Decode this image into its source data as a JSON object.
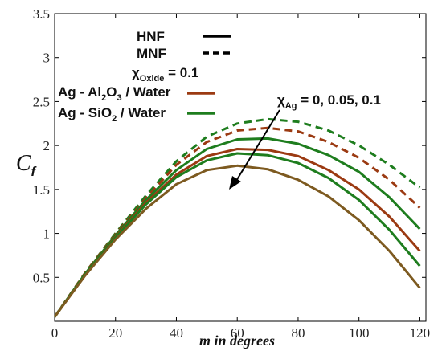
{
  "chart_data": {
    "type": "line",
    "xlabel": "m in degrees",
    "ylabel": "C",
    "ylabel_sub": "f",
    "xlim": [
      0,
      122
    ],
    "ylim": [
      0,
      3.5
    ],
    "xticks": [
      0,
      20,
      40,
      60,
      80,
      100,
      120
    ],
    "yticks": [
      0.5,
      1,
      1.5,
      2,
      2.5,
      3,
      3.5
    ],
    "grid": false,
    "colors": {
      "al2o3": "#9b3a12",
      "sio2": "#1e7d1e",
      "black": "#000000",
      "olive": "#7d5a20"
    },
    "legend_style": {
      "hnf": "HNF",
      "mnf": "MNF",
      "oxide_pre": "χ",
      "oxide_sub": "Oxide",
      "oxide_post": " = 0.1"
    },
    "legend_fluid": {
      "al2o3": {
        "t1": "Ag - Al",
        "s1": "2",
        "t2": "O",
        "s2": "3",
        "t3": " / Water"
      },
      "sio2": {
        "t1": "Ag - SiO",
        "s1": "2",
        "t2": " / Water"
      }
    },
    "annotation": {
      "pre": "χ",
      "sub": "Ag",
      "post": " = 0, 0.05, 0.1"
    },
    "series": [
      {
        "style": "dashed",
        "color": "sio2",
        "x": [
          0,
          10,
          20,
          30,
          40,
          50,
          60,
          70,
          80,
          90,
          100,
          110,
          120
        ],
        "y": [
          0.05,
          0.55,
          1.0,
          1.43,
          1.82,
          2.1,
          2.25,
          2.3,
          2.27,
          2.17,
          2.0,
          1.78,
          1.52
        ]
      },
      {
        "style": "dashed",
        "color": "al2o3",
        "x": [
          0,
          10,
          20,
          30,
          40,
          50,
          60,
          70,
          80,
          90,
          100,
          110,
          120
        ],
        "y": [
          0.05,
          0.55,
          0.99,
          1.4,
          1.78,
          2.04,
          2.17,
          2.2,
          2.16,
          2.04,
          1.86,
          1.61,
          1.29
        ]
      },
      {
        "style": "solid",
        "color": "sio2",
        "x": [
          0,
          10,
          20,
          30,
          40,
          50,
          60,
          70,
          80,
          90,
          100,
          110,
          120
        ],
        "y": [
          0.05,
          0.54,
          0.98,
          1.38,
          1.72,
          1.96,
          2.07,
          2.08,
          2.02,
          1.89,
          1.7,
          1.41,
          1.05
        ]
      },
      {
        "style": "solid",
        "color": "al2o3",
        "x": [
          0,
          10,
          20,
          30,
          40,
          50,
          60,
          70,
          80,
          90,
          100,
          110,
          120
        ],
        "y": [
          0.05,
          0.53,
          0.96,
          1.35,
          1.67,
          1.88,
          1.96,
          1.95,
          1.88,
          1.72,
          1.5,
          1.19,
          0.8
        ]
      },
      {
        "style": "solid",
        "color": "sio2",
        "x": [
          0,
          10,
          20,
          30,
          40,
          50,
          60,
          70,
          80,
          90,
          100,
          110,
          120
        ],
        "y": [
          0.05,
          0.53,
          0.95,
          1.33,
          1.64,
          1.83,
          1.91,
          1.89,
          1.8,
          1.63,
          1.38,
          1.04,
          0.63
        ]
      },
      {
        "style": "solid",
        "color": "olive",
        "x": [
          0,
          10,
          20,
          30,
          40,
          50,
          60,
          70,
          80,
          90,
          100,
          110,
          120
        ],
        "y": [
          0.05,
          0.52,
          0.93,
          1.28,
          1.56,
          1.72,
          1.77,
          1.73,
          1.61,
          1.42,
          1.15,
          0.8,
          0.38
        ]
      }
    ]
  }
}
